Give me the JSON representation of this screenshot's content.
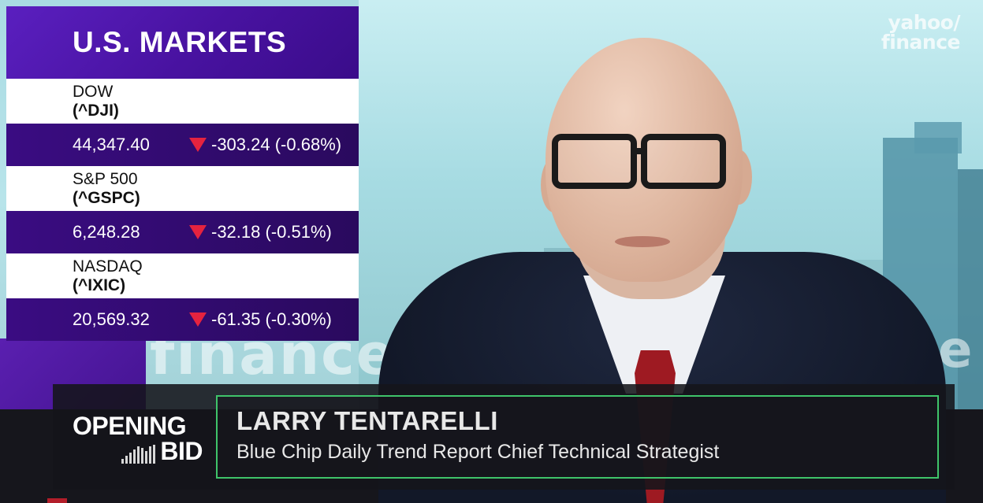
{
  "broadcast": {
    "logo": {
      "line1": "yahoo/",
      "line2": "finance"
    },
    "background_wordmark": "finance",
    "markets": {
      "title": "U.S. MARKETS",
      "indices": [
        {
          "name": "DOW",
          "symbol": "(^DJI)",
          "price": "44,347.40",
          "direction": "down",
          "change": "-303.24 (-0.68%)"
        },
        {
          "name": "S&P 500",
          "symbol": "(^GSPC)",
          "price": "6,248.28",
          "direction": "down",
          "change": "-32.18 (-0.51%)"
        },
        {
          "name": "NASDAQ",
          "symbol": "(^IXIC)",
          "price": "20,569.32",
          "direction": "down",
          "change": "-61.35 (-0.30%)"
        }
      ],
      "colors": {
        "header": "#4812a0",
        "value_row": "#2e0a68",
        "down_arrow": "#e5233f"
      }
    },
    "show": {
      "name_line1": "OPENING",
      "name_line2": "BID",
      "icon": "audio-bars-icon"
    },
    "guest": {
      "name": "LARRY TENTARELLI",
      "title": "Blue Chip Daily Trend Report Chief Technical Strategist",
      "frame_color": "#3fc46a"
    }
  }
}
